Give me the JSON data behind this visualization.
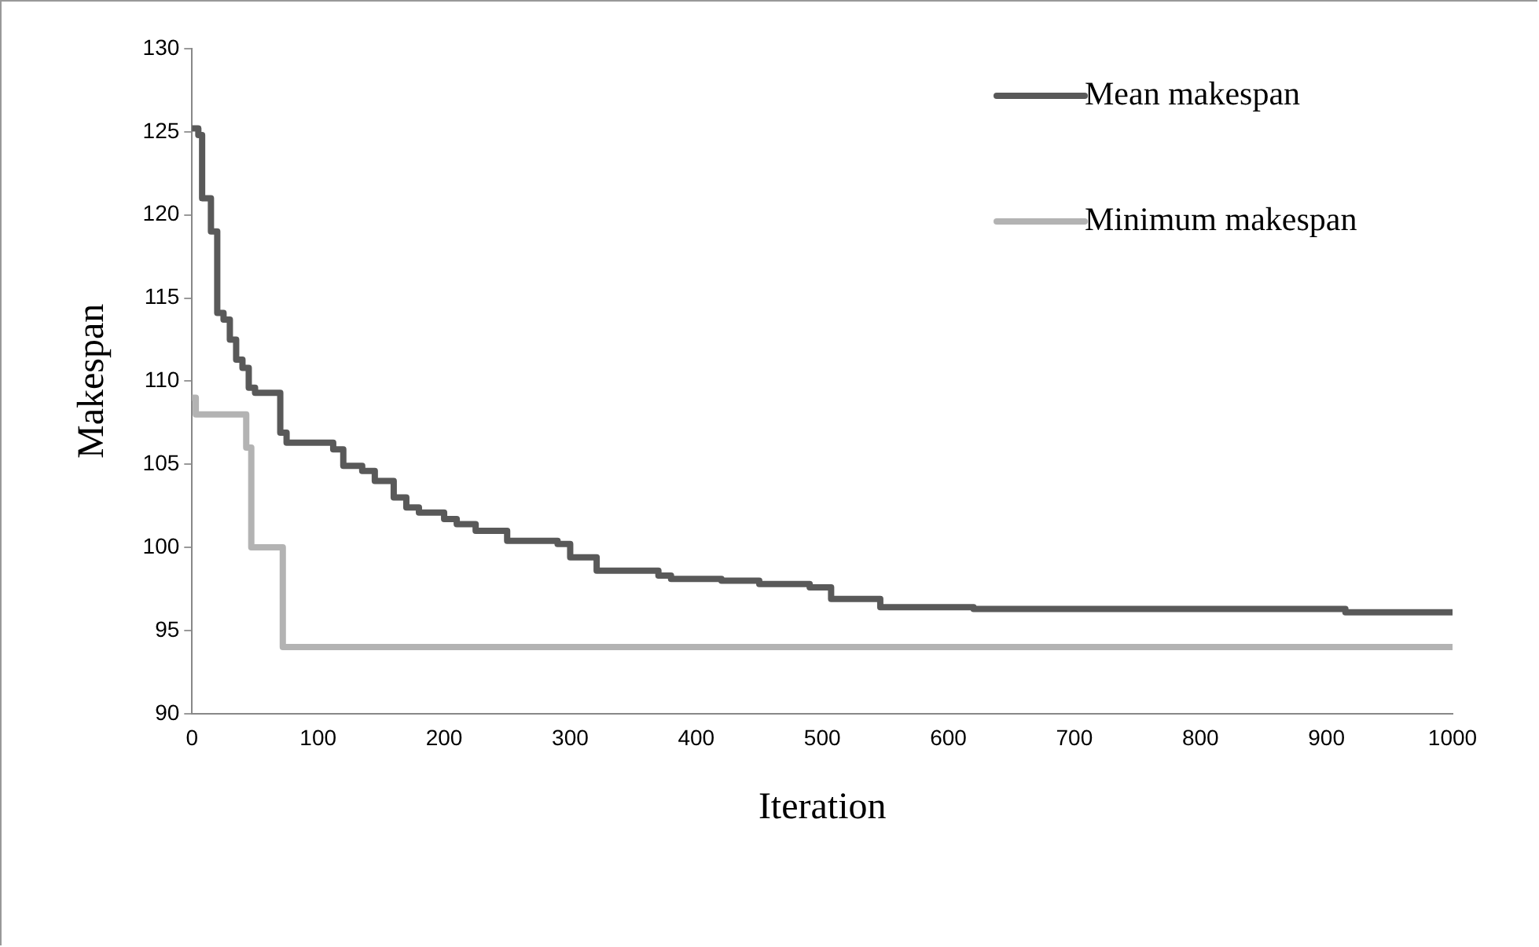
{
  "chart_data": {
    "type": "step",
    "xlabel": "Iteration",
    "ylabel": "Makespan",
    "xlim": [
      0,
      1000
    ],
    "xticks": [
      0,
      100,
      200,
      300,
      400,
      500,
      600,
      700,
      800,
      900,
      1000
    ],
    "ylim": [
      90,
      130
    ],
    "yticks": [
      90,
      95,
      100,
      105,
      110,
      115,
      120,
      125,
      130
    ],
    "grid": false,
    "legend": "top right",
    "series": [
      {
        "name": "Mean makespan",
        "color": "#595959",
        "x": [
          0,
          5,
          8,
          15,
          20,
          25,
          30,
          35,
          40,
          45,
          50,
          70,
          75,
          112,
          120,
          135,
          145,
          160,
          170,
          180,
          200,
          210,
          225,
          250,
          290,
          300,
          321,
          370,
          380,
          420,
          450,
          490,
          507,
          546,
          620,
          915,
          1000
        ],
        "values": [
          125.2,
          124.8,
          121,
          119,
          114.1,
          113.7,
          112.5,
          111.3,
          110.8,
          109.6,
          109.3,
          106.9,
          106.3,
          105.9,
          104.9,
          104.6,
          104,
          103,
          102.4,
          102.1,
          101.7,
          101.4,
          101,
          100.4,
          100.2,
          99.4,
          98.6,
          98.3,
          98.1,
          98,
          97.8,
          97.6,
          96.9,
          96.4,
          96.3,
          96.1,
          96.1
        ]
      },
      {
        "name": "Minimum makespan",
        "color": "#b3b3b3",
        "x": [
          0,
          3,
          43,
          47,
          72,
          1000
        ],
        "values": [
          109,
          108,
          106,
          100,
          94,
          94
        ]
      }
    ]
  }
}
